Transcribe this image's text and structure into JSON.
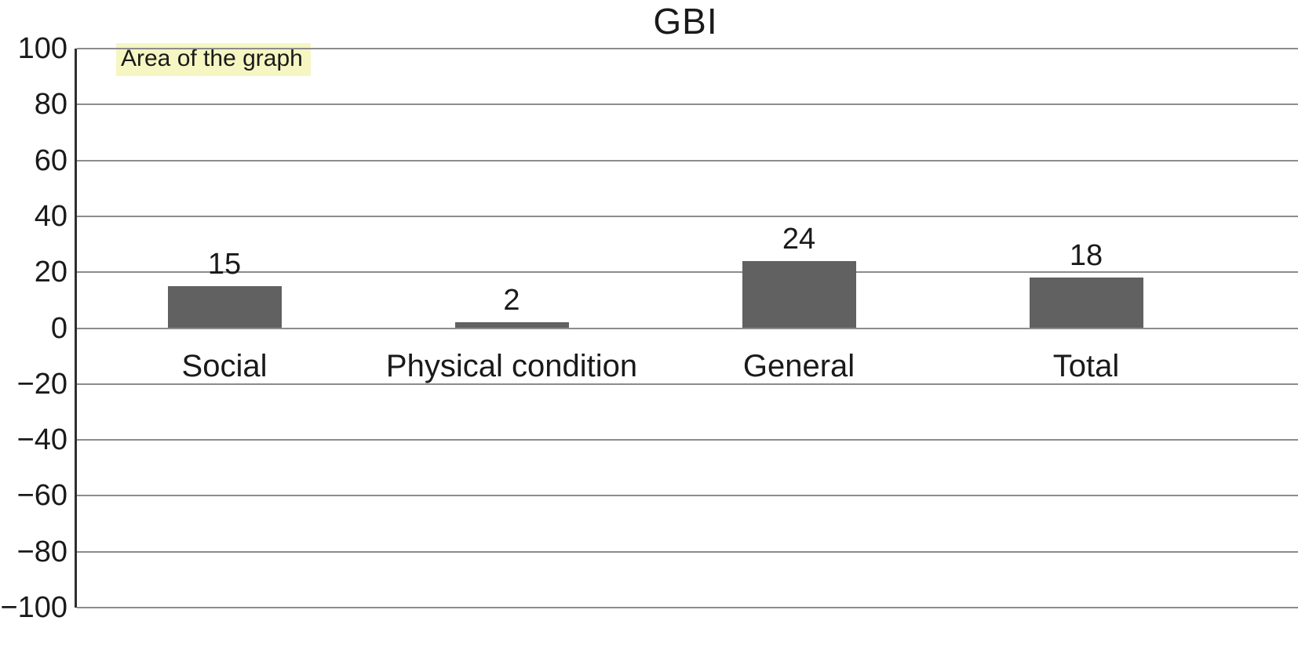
{
  "chart_data": {
    "type": "bar",
    "title": "GBI",
    "annotation": "Area of the graph",
    "categories": [
      "Social",
      "Physical condition",
      "General",
      "Total"
    ],
    "values": [
      15,
      2,
      24,
      18
    ],
    "ylim": [
      -100,
      100
    ],
    "yticks": [
      100,
      80,
      60,
      40,
      20,
      0,
      -20,
      -40,
      -60,
      -80,
      -100
    ],
    "ytick_labels": [
      "100",
      "80",
      "60",
      "40",
      "20",
      "0",
      "−20",
      "−40",
      "−60",
      "−80",
      "−100"
    ],
    "xlabel": "",
    "ylabel": "",
    "grid": true,
    "legend": false,
    "bar_color": "#616161",
    "annotation_bg": "#f6f6c3",
    "gridline_color": "#8c8c8c"
  }
}
